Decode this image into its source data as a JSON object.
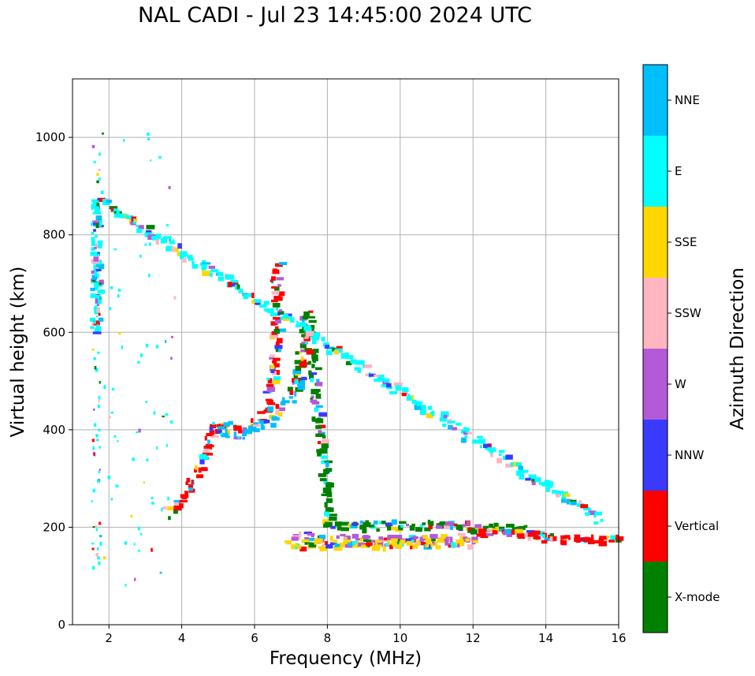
{
  "chart_data": {
    "type": "scatter",
    "title": "NAL CADI - Jul 23 14:45:00 2024 UTC",
    "xlabel": "Frequency (MHz)",
    "ylabel": "Virtual height (km)",
    "xlim": [
      1,
      16
    ],
    "ylim": [
      0,
      1120
    ],
    "xticks": [
      2,
      4,
      6,
      8,
      10,
      12,
      14,
      16
    ],
    "yticks": [
      0,
      200,
      400,
      600,
      800,
      1000
    ],
    "grid": true,
    "colorbar": {
      "label": "Azimuth Direction",
      "categories": [
        {
          "name": "X-mode",
          "color": "#008000"
        },
        {
          "name": "Vertical",
          "color": "#ff0000"
        },
        {
          "name": "NNW",
          "color": "#3a3aff"
        },
        {
          "name": "W",
          "color": "#b35ad6"
        },
        {
          "name": "SSW",
          "color": "#ffb6c1"
        },
        {
          "name": "SSE",
          "color": "#ffd700"
        },
        {
          "name": "E",
          "color": "#00ffff"
        },
        {
          "name": "NNE",
          "color": "#00bfff"
        }
      ]
    },
    "series": [
      {
        "name": "Vertical",
        "trace": [
          [
            3.6,
            235
          ],
          [
            4.0,
            265
          ],
          [
            4.3,
            300
          ],
          [
            4.5,
            340
          ],
          [
            4.7,
            390
          ],
          [
            4.9,
            420
          ],
          [
            5.3,
            405
          ],
          [
            5.7,
            395
          ],
          [
            6.0,
            420
          ],
          [
            6.3,
            450
          ],
          [
            6.5,
            540
          ],
          [
            6.55,
            620
          ],
          [
            6.55,
            700
          ],
          [
            6.55,
            745
          ]
        ]
      },
      {
        "name": "W",
        "trace": [
          [
            7.0,
            185
          ],
          [
            8.0,
            180
          ],
          [
            9.0,
            180
          ],
          [
            10.0,
            178
          ],
          [
            11.0,
            178
          ],
          [
            12.0,
            182
          ]
        ]
      },
      {
        "name": "X-mode",
        "trace": [
          [
            7.0,
            490
          ],
          [
            7.2,
            540
          ],
          [
            7.3,
            600
          ],
          [
            7.4,
            640
          ],
          [
            8.0,
            205
          ],
          [
            10.0,
            208
          ],
          [
            12.0,
            205
          ],
          [
            13.5,
            195
          ]
        ]
      },
      {
        "name": "Vertical",
        "trace": [
          [
            12.0,
            195
          ],
          [
            13.0,
            192
          ],
          [
            14.0,
            182
          ],
          [
            15.0,
            180
          ],
          [
            16.0,
            182
          ]
        ]
      },
      {
        "name": "SSE",
        "trace": [
          [
            6.8,
            170
          ],
          [
            8.0,
            168
          ],
          [
            9.5,
            168
          ],
          [
            11.0,
            170
          ],
          [
            12.0,
            172
          ]
        ]
      },
      {
        "name": "NNE",
        "trace": [
          [
            4.8,
            405
          ],
          [
            5.5,
            390
          ],
          [
            6.5,
            430
          ],
          [
            7.0,
            470
          ],
          [
            7.2,
            520
          ]
        ]
      },
      {
        "name": "E",
        "trace": [
          [
            1.6,
            600
          ],
          [
            1.6,
            700
          ],
          [
            1.6,
            880
          ],
          [
            15.5,
            215
          ]
        ]
      }
    ]
  }
}
